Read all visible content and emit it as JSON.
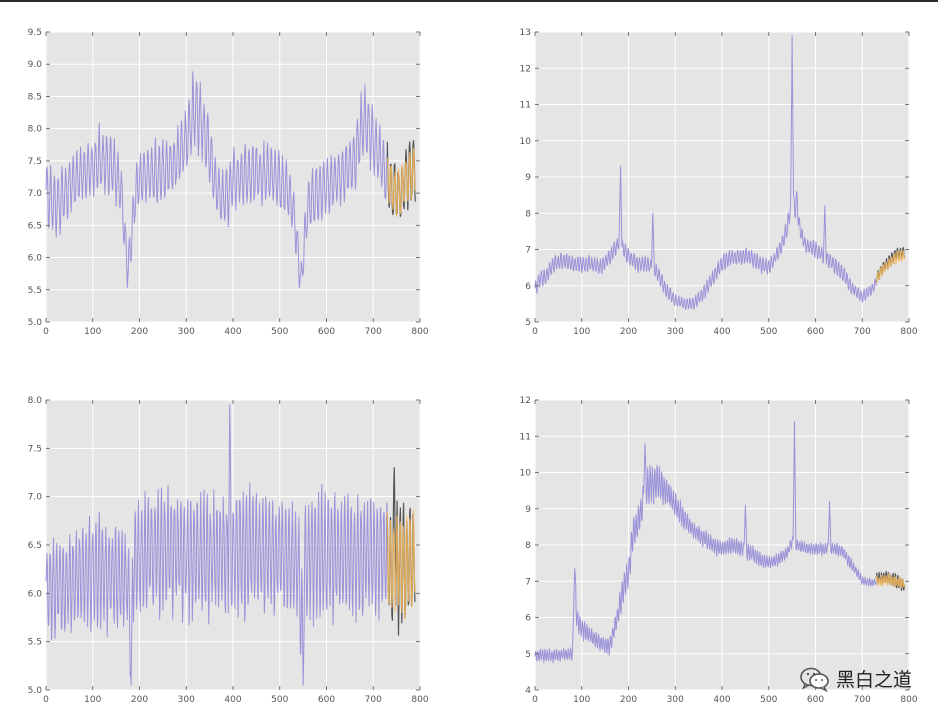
{
  "figure": {
    "background": "#ffffff",
    "plot_background": "#e5e5e5",
    "grid_color": "#ffffff",
    "history_color": "#9b93d8",
    "actual_color": "#555555",
    "forecast_color": "#f5b85a"
  },
  "chart_data": [
    {
      "type": "line",
      "xlim": [
        0,
        800
      ],
      "ylim": [
        5.0,
        9.5
      ],
      "xticks": [
        0,
        100,
        200,
        300,
        400,
        500,
        600,
        700,
        800
      ],
      "yticks": [
        5.0,
        5.5,
        6.0,
        6.5,
        7.0,
        7.5,
        8.0,
        8.5,
        9.0,
        9.5
      ],
      "grid": true,
      "forecast_start": 730,
      "series": [
        {
          "role": "history",
          "color": "#9b93d8",
          "x": [
            0,
            20,
            40,
            60,
            80,
            100,
            120,
            140,
            160,
            170,
            175,
            180,
            190,
            200,
            220,
            240,
            260,
            280,
            300,
            310,
            320,
            330,
            340,
            350,
            360,
            370,
            380,
            390,
            400,
            420,
            440,
            460,
            480,
            500,
            520,
            530,
            540,
            545,
            550,
            560,
            580,
            600,
            620,
            640,
            660,
            670,
            680,
            690,
            700,
            710,
            720,
            730
          ],
          "center": [
            7.0,
            6.8,
            7.0,
            7.2,
            7.3,
            7.4,
            7.5,
            7.4,
            7.1,
            6.2,
            5.8,
            6.1,
            6.9,
            7.2,
            7.3,
            7.3,
            7.4,
            7.5,
            7.8,
            8.1,
            8.3,
            8.2,
            7.9,
            7.6,
            7.2,
            7.0,
            6.9,
            7.0,
            7.2,
            7.3,
            7.3,
            7.3,
            7.3,
            7.2,
            7.0,
            6.7,
            6.0,
            5.6,
            6.0,
            6.8,
            7.0,
            7.1,
            7.2,
            7.3,
            7.5,
            7.9,
            8.1,
            8.0,
            7.8,
            7.6,
            7.4,
            7.3
          ],
          "amp": [
            0.45,
            0.45,
            0.4,
            0.4,
            0.4,
            0.4,
            0.45,
            0.4,
            0.4,
            0.3,
            0.3,
            0.3,
            0.35,
            0.4,
            0.4,
            0.4,
            0.4,
            0.4,
            0.45,
            0.5,
            0.55,
            0.5,
            0.5,
            0.45,
            0.4,
            0.4,
            0.4,
            0.4,
            0.4,
            0.4,
            0.4,
            0.4,
            0.4,
            0.4,
            0.4,
            0.3,
            0.3,
            0.2,
            0.3,
            0.4,
            0.4,
            0.4,
            0.4,
            0.4,
            0.45,
            0.45,
            0.45,
            0.45,
            0.4,
            0.4,
            0.4,
            0.4
          ],
          "period": 8
        },
        {
          "role": "actual",
          "color": "#555555",
          "x": [
            730,
            740,
            750,
            760,
            770,
            780,
            790
          ],
          "center": [
            7.3,
            7.0,
            7.0,
            7.0,
            7.3,
            7.3,
            7.4
          ],
          "amp": [
            0.45,
            0.45,
            0.45,
            0.45,
            0.45,
            0.45,
            0.45
          ],
          "period": 8
        },
        {
          "role": "forecast",
          "color": "#f5b85a",
          "x": [
            730,
            740,
            750,
            760,
            770,
            780,
            790
          ],
          "center": [
            7.3,
            7.1,
            7.0,
            7.05,
            7.2,
            7.3,
            7.35
          ],
          "amp": [
            0.3,
            0.32,
            0.33,
            0.33,
            0.33,
            0.33,
            0.33
          ],
          "period": 8
        }
      ]
    },
    {
      "type": "line",
      "xlim": [
        0,
        800
      ],
      "ylim": [
        5,
        13
      ],
      "xticks": [
        0,
        100,
        200,
        300,
        400,
        500,
        600,
        700,
        800
      ],
      "yticks": [
        5,
        6,
        7,
        8,
        9,
        10,
        11,
        12,
        13
      ],
      "grid": true,
      "forecast_start": 730,
      "series": [
        {
          "role": "history",
          "color": "#9b93d8",
          "x": [
            0,
            10,
            20,
            40,
            60,
            80,
            100,
            120,
            140,
            160,
            170,
            180,
            190,
            200,
            220,
            240,
            260,
            280,
            300,
            320,
            340,
            360,
            380,
            400,
            420,
            440,
            460,
            480,
            500,
            520,
            530,
            540,
            550,
            560,
            570,
            580,
            600,
            610,
            620,
            640,
            660,
            680,
            700,
            720,
            730
          ],
          "center": [
            5.9,
            6.2,
            6.2,
            6.6,
            6.7,
            6.6,
            6.6,
            6.6,
            6.5,
            6.8,
            7.0,
            7.2,
            7.0,
            6.8,
            6.6,
            6.6,
            6.4,
            5.9,
            5.6,
            5.5,
            5.5,
            5.8,
            6.2,
            6.6,
            6.8,
            6.8,
            6.8,
            6.6,
            6.5,
            6.9,
            7.2,
            7.6,
            8.5,
            8.0,
            7.4,
            7.1,
            7.0,
            6.9,
            6.8,
            6.6,
            6.3,
            5.9,
            5.7,
            5.9,
            6.1
          ],
          "amp": [
            0.2,
            0.2,
            0.2,
            0.2,
            0.2,
            0.2,
            0.2,
            0.2,
            0.2,
            0.2,
            0.2,
            0.2,
            0.2,
            0.2,
            0.2,
            0.2,
            0.2,
            0.2,
            0.15,
            0.15,
            0.15,
            0.2,
            0.2,
            0.2,
            0.2,
            0.2,
            0.2,
            0.2,
            0.2,
            0.2,
            0.2,
            0.25,
            0.25,
            0.25,
            0.2,
            0.2,
            0.2,
            0.2,
            0.2,
            0.2,
            0.2,
            0.15,
            0.15,
            0.15,
            0.15
          ],
          "period": 6,
          "spikes": [
            [
              183,
              9.3
            ],
            [
              252,
              8.0
            ],
            [
              550,
              12.9
            ],
            [
              560,
              8.6
            ],
            [
              620,
              8.2
            ]
          ]
        },
        {
          "role": "actual",
          "color": "#555555",
          "x": [
            730,
            745,
            760,
            775,
            790
          ],
          "center": [
            6.2,
            6.5,
            6.7,
            6.9,
            6.9
          ],
          "amp": [
            0.15,
            0.15,
            0.15,
            0.15,
            0.15
          ],
          "period": 6
        },
        {
          "role": "forecast",
          "color": "#f5b85a",
          "x": [
            730,
            745,
            760,
            775,
            790
          ],
          "center": [
            6.2,
            6.45,
            6.65,
            6.8,
            6.85
          ],
          "amp": [
            0.12,
            0.13,
            0.14,
            0.15,
            0.15
          ],
          "period": 6
        }
      ]
    },
    {
      "type": "line",
      "xlim": [
        0,
        800
      ],
      "ylim": [
        5.0,
        8.0
      ],
      "xticks": [
        0,
        100,
        200,
        300,
        400,
        500,
        600,
        700,
        800
      ],
      "yticks": [
        5.0,
        5.5,
        6.0,
        6.5,
        7.0,
        7.5,
        8.0
      ],
      "grid": true,
      "forecast_start": 730,
      "series": [
        {
          "role": "history",
          "color": "#9b93d8",
          "x": [
            0,
            50,
            100,
            150,
            175,
            180,
            185,
            190,
            200,
            250,
            300,
            350,
            400,
            450,
            500,
            540,
            545,
            550,
            560,
            600,
            650,
            700,
            730
          ],
          "center": [
            6.05,
            6.1,
            6.25,
            6.2,
            6.1,
            5.7,
            6.1,
            6.3,
            6.4,
            6.45,
            6.4,
            6.4,
            6.4,
            6.45,
            6.4,
            6.3,
            5.8,
            6.2,
            6.4,
            6.4,
            6.4,
            6.4,
            6.4
          ],
          "amp": [
            0.45,
            0.45,
            0.5,
            0.5,
            0.45,
            0.4,
            0.45,
            0.5,
            0.55,
            0.55,
            0.55,
            0.55,
            0.55,
            0.55,
            0.55,
            0.5,
            0.45,
            0.5,
            0.55,
            0.55,
            0.55,
            0.55,
            0.55
          ],
          "period": 7,
          "spikes": [
            [
              182,
              5.05
            ],
            [
              393,
              7.95
            ],
            [
              550,
              5.05
            ]
          ]
        },
        {
          "role": "actual",
          "color": "#555555",
          "x": [
            730,
            750,
            770,
            790
          ],
          "center": [
            6.3,
            6.25,
            6.3,
            6.3
          ],
          "amp": [
            0.5,
            0.55,
            0.5,
            0.5
          ],
          "period": 7,
          "spikes": [
            [
              745,
              7.3
            ]
          ]
        },
        {
          "role": "forecast",
          "color": "#f5b85a",
          "x": [
            730,
            750,
            770,
            790
          ],
          "center": [
            6.3,
            6.3,
            6.3,
            6.3
          ],
          "amp": [
            0.45,
            0.45,
            0.45,
            0.45
          ],
          "period": 7
        }
      ]
    },
    {
      "type": "line",
      "xlim": [
        0,
        800
      ],
      "ylim": [
        4,
        12
      ],
      "xticks": [
        0,
        100,
        200,
        300,
        400,
        500,
        600,
        700,
        800
      ],
      "yticks": [
        4,
        5,
        6,
        7,
        8,
        9,
        10,
        11,
        12
      ],
      "grid": true,
      "forecast_start": 730,
      "series": [
        {
          "role": "history",
          "color": "#9b93d8",
          "x": [
            0,
            40,
            80,
            85,
            90,
            100,
            120,
            140,
            160,
            180,
            190,
            200,
            210,
            220,
            240,
            260,
            280,
            300,
            320,
            340,
            360,
            380,
            400,
            420,
            440,
            460,
            480,
            500,
            520,
            540,
            550,
            560,
            580,
            600,
            620,
            640,
            660,
            680,
            700,
            720,
            730
          ],
          "center": [
            4.95,
            4.95,
            5.0,
            6.8,
            6.0,
            5.7,
            5.5,
            5.3,
            5.2,
            6.2,
            6.9,
            7.2,
            8.3,
            8.6,
            9.6,
            9.8,
            9.5,
            9.1,
            8.7,
            8.4,
            8.2,
            8.0,
            7.9,
            8.0,
            7.9,
            7.8,
            7.6,
            7.5,
            7.6,
            7.8,
            8.1,
            8.0,
            7.9,
            7.9,
            7.9,
            7.9,
            7.8,
            7.4,
            7.0,
            6.95,
            7.0
          ],
          "amp": [
            0.15,
            0.15,
            0.15,
            0.3,
            0.3,
            0.25,
            0.2,
            0.2,
            0.2,
            0.35,
            0.4,
            0.35,
            0.4,
            0.4,
            0.45,
            0.45,
            0.35,
            0.3,
            0.25,
            0.2,
            0.2,
            0.2,
            0.2,
            0.2,
            0.2,
            0.2,
            0.2,
            0.15,
            0.15,
            0.15,
            0.15,
            0.15,
            0.15,
            0.15,
            0.15,
            0.15,
            0.15,
            0.15,
            0.1,
            0.1,
            0.1
          ],
          "period": 5,
          "spikes": [
            [
              85,
              7.35
            ],
            [
              235,
              10.8
            ],
            [
              555,
              11.4
            ],
            [
              450,
              9.1
            ],
            [
              630,
              9.2
            ]
          ]
        },
        {
          "role": "actual",
          "color": "#555555",
          "x": [
            730,
            750,
            770,
            790
          ],
          "center": [
            7.05,
            7.1,
            7.0,
            6.9
          ],
          "amp": [
            0.15,
            0.18,
            0.18,
            0.15
          ],
          "period": 5
        },
        {
          "role": "forecast",
          "color": "#f5b85a",
          "x": [
            730,
            750,
            770,
            790
          ],
          "center": [
            7.0,
            7.05,
            7.0,
            6.95
          ],
          "amp": [
            0.12,
            0.13,
            0.13,
            0.12
          ],
          "period": 5
        }
      ]
    }
  ],
  "watermark": {
    "text": "黑白之道",
    "icon": "wechat-icon"
  }
}
